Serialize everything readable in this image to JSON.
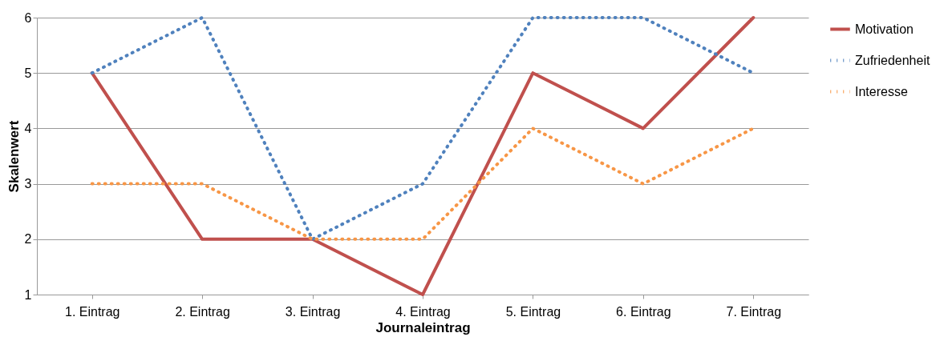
{
  "chart_data": {
    "type": "line",
    "xlabel": "Journaleintrag",
    "ylabel": "Skalenwert",
    "categories": [
      "1. Eintrag",
      "2. Eintrag",
      "3. Eintrag",
      "4. Eintrag",
      "5. Eintrag",
      "6. Eintrag",
      "7. Eintrag"
    ],
    "series": [
      {
        "name": "Motivation",
        "color": "#c0504d",
        "line_style": "solid",
        "values": [
          5,
          2,
          2,
          1,
          5,
          4,
          6
        ]
      },
      {
        "name": "Zufriedenheit",
        "color": "#4f81bd",
        "line_style": "dotted",
        "values": [
          5,
          6,
          2,
          3,
          6,
          6,
          5
        ]
      },
      {
        "name": "Interesse",
        "color": "#f79646",
        "line_style": "dotted",
        "values": [
          3,
          3,
          2,
          2,
          4,
          3,
          4
        ]
      }
    ],
    "ylim": [
      1,
      6
    ],
    "yticks": [
      1,
      2,
      3,
      4,
      5,
      6
    ],
    "grid": "y",
    "legend": "right"
  }
}
